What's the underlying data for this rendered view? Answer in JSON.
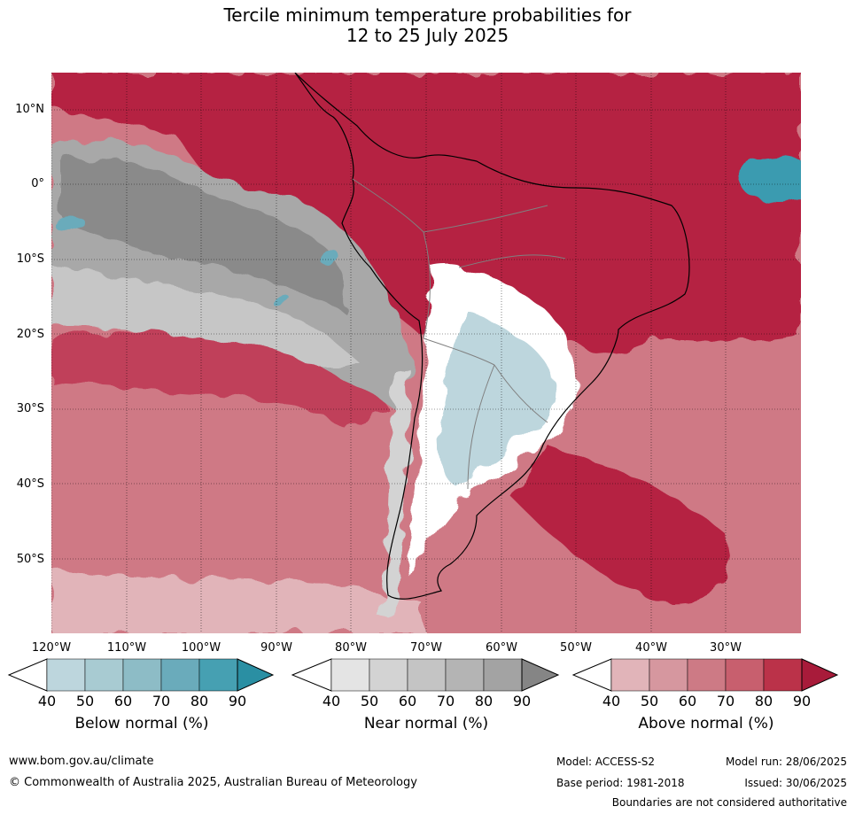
{
  "title": {
    "line1": "Tercile minimum temperature probabilities for",
    "line2": "12 to 25 July 2025"
  },
  "map": {
    "lat_labels": [
      "10°N",
      "0°",
      "10°S",
      "20°S",
      "30°S",
      "40°S",
      "50°S"
    ],
    "lon_labels": [
      "120°W",
      "110°W",
      "100°W",
      "90°W",
      "80°W",
      "70°W",
      "60°W",
      "50°W",
      "40°W",
      "30°W"
    ],
    "extent": {
      "lon_min": -120,
      "lon_max": -20,
      "lat_min": -60,
      "lat_max": 15
    },
    "colors": {
      "below": [
        "#ffffff",
        "#bdd6dd",
        "#a8cbd2",
        "#8dbcc6",
        "#6aabbb",
        "#46a0b2",
        "#2a8fa3"
      ],
      "near": [
        "#ffffff",
        "#e4e4e4",
        "#d3d3d3",
        "#c4c4c4",
        "#b4b4b4",
        "#a3a3a3",
        "#858585"
      ],
      "above": [
        "#ffffff",
        "#e1b4b9",
        "#d6979f",
        "#cd7a85",
        "#c85f6e",
        "#bb3249",
        "#a81b3a"
      ]
    }
  },
  "legends": [
    {
      "id": "below",
      "title": "Below normal (%)",
      "ticks": [
        "40",
        "50",
        "60",
        "70",
        "80",
        "90"
      ]
    },
    {
      "id": "near",
      "title": "Near normal (%)",
      "ticks": [
        "40",
        "50",
        "60",
        "70",
        "80",
        "90"
      ]
    },
    {
      "id": "above",
      "title": "Above normal (%)",
      "ticks": [
        "40",
        "50",
        "60",
        "70",
        "80",
        "90"
      ]
    }
  ],
  "footer": {
    "url": "www.bom.gov.au/climate",
    "copyright": "© Commonwealth of Australia 2025, Australian Bureau of Meteorology",
    "model": "Model: ACCESS-S2",
    "base_period": "Base period: 1981-2018",
    "model_run": "Model run: 28/06/2025",
    "issued": "Issued: 30/06/2025",
    "disclaimer": "Boundaries are not considered authoritative"
  }
}
